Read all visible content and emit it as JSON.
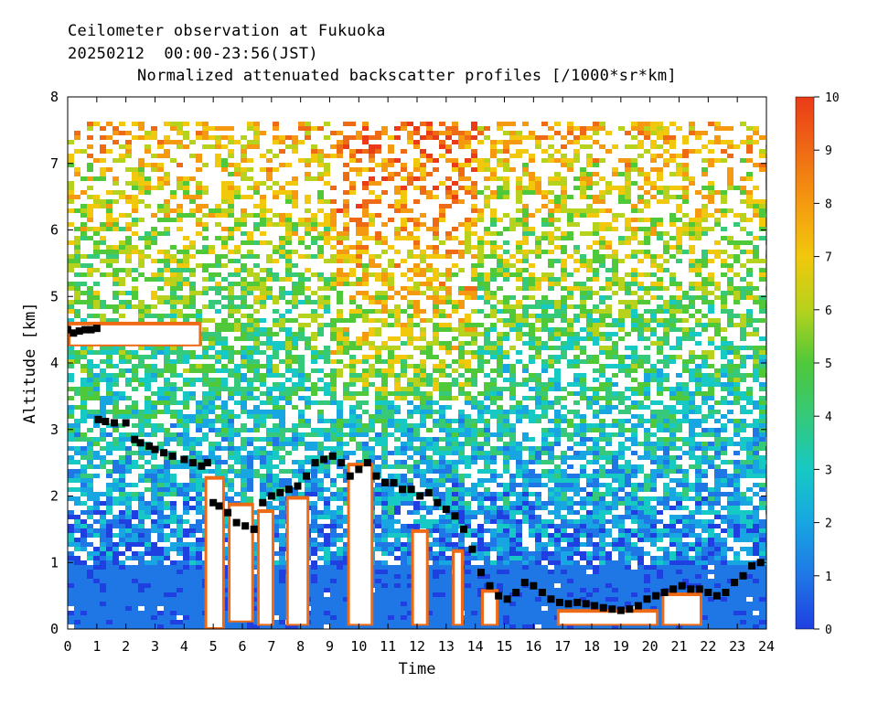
{
  "header": {
    "line1": "Ceilometer observation at Fukuoka",
    "line2": "20250212  00:00-23:56(JST)",
    "line3": "Normalized attenuated backscatter profiles [/1000*sr*km]"
  },
  "chart_data": {
    "type": "heatmap",
    "xlabel": "Time",
    "ylabel": "Altitude [km]",
    "xlim": [
      0,
      24
    ],
    "ylim": [
      0,
      8
    ],
    "x_ticks": [
      "0",
      "1",
      "2",
      "3",
      "4",
      "5",
      "6",
      "7",
      "8",
      "9",
      "10",
      "11",
      "12",
      "13",
      "14",
      "15",
      "16",
      "17",
      "18",
      "19",
      "20",
      "21",
      "22",
      "23",
      "24"
    ],
    "y_ticks": [
      "0",
      "1",
      "2",
      "3",
      "4",
      "5",
      "6",
      "7",
      "8"
    ],
    "data_top_altitude_km": 7.67,
    "colorbar": {
      "min": 0,
      "max": 10,
      "ticks": [
        "0",
        "1",
        "2",
        "3",
        "4",
        "5",
        "6",
        "7",
        "8",
        "9",
        "10"
      ],
      "colors": [
        "#1f3fe0",
        "#1f77e6",
        "#17a6e2",
        "#16c9c4",
        "#35c979",
        "#4fc83a",
        "#b6d21c",
        "#f2c80c",
        "#f59a10",
        "#ef6a14",
        "#ea3a18"
      ]
    },
    "cloud_base_series": {
      "name": "",
      "x": [
        0.0,
        0.2,
        0.4,
        0.6,
        0.8,
        1.0,
        1.05,
        1.3,
        1.6,
        2.0,
        2.3,
        2.5,
        2.8,
        3.0,
        3.3,
        3.6,
        4.0,
        4.3,
        4.6,
        4.8,
        5.0,
        5.2,
        5.5,
        5.8,
        6.1,
        6.4,
        6.7,
        7.0,
        7.3,
        7.6,
        7.9,
        8.2,
        8.5,
        8.8,
        9.1,
        9.4,
        9.7,
        10.0,
        10.3,
        10.6,
        10.9,
        11.2,
        11.5,
        11.8,
        12.1,
        12.4,
        12.7,
        13.0,
        13.3,
        13.6,
        13.9,
        14.2,
        14.5,
        14.8,
        15.1,
        15.4,
        15.7,
        16.0,
        16.3,
        16.6,
        16.9,
        17.2,
        17.5,
        17.8,
        18.1,
        18.4,
        18.7,
        19.0,
        19.3,
        19.6,
        19.9,
        20.2,
        20.5,
        20.8,
        21.1,
        21.4,
        21.7,
        22.0,
        22.3,
        22.6,
        22.9,
        23.2,
        23.5,
        23.8
      ],
      "y": [
        4.5,
        4.45,
        4.48,
        4.5,
        4.5,
        4.52,
        3.15,
        3.12,
        3.1,
        3.1,
        2.85,
        2.8,
        2.75,
        2.7,
        2.65,
        2.6,
        2.55,
        2.5,
        2.45,
        2.5,
        1.9,
        1.85,
        1.75,
        1.6,
        1.55,
        1.5,
        1.9,
        2.0,
        2.05,
        2.1,
        2.15,
        2.3,
        2.5,
        2.55,
        2.6,
        2.5,
        2.3,
        2.4,
        2.5,
        2.3,
        2.2,
        2.2,
        2.1,
        2.1,
        2.0,
        2.05,
        1.9,
        1.8,
        1.7,
        1.5,
        1.2,
        0.85,
        0.65,
        0.5,
        0.45,
        0.55,
        0.7,
        0.65,
        0.55,
        0.45,
        0.4,
        0.38,
        0.4,
        0.38,
        0.35,
        0.32,
        0.3,
        0.28,
        0.3,
        0.35,
        0.45,
        0.5,
        0.55,
        0.6,
        0.65,
        0.6,
        0.6,
        0.55,
        0.5,
        0.55,
        0.7,
        0.8,
        0.95,
        1.0
      ]
    }
  }
}
